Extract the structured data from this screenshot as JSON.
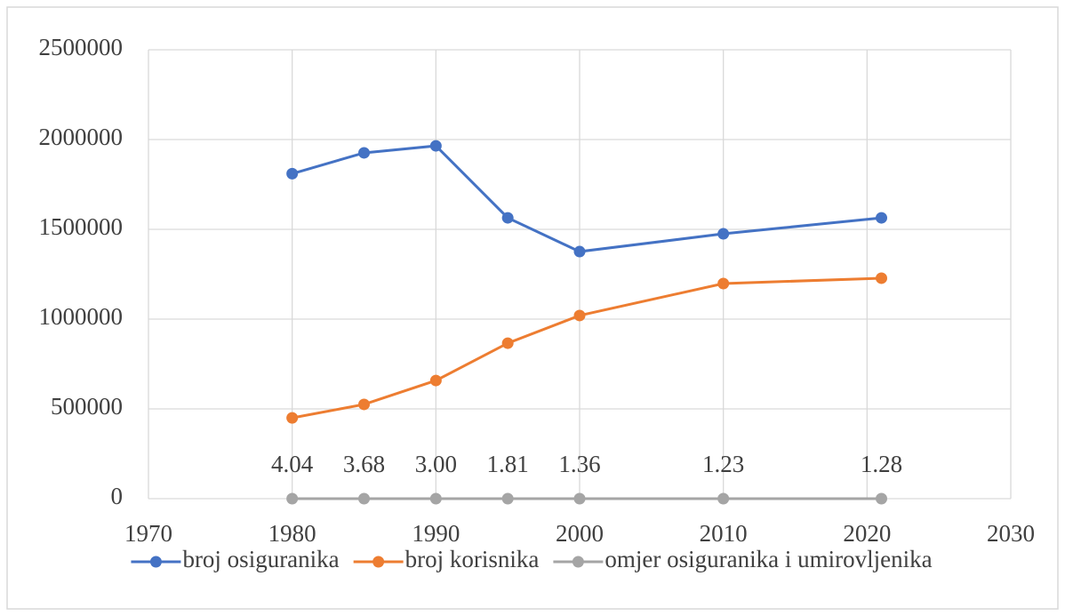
{
  "chart_data": {
    "type": "line",
    "x": [
      1980,
      1985,
      1990,
      1995,
      2000,
      2010,
      2021
    ],
    "series": [
      {
        "name": "broj osiguranika",
        "color": "#4472c4",
        "values": [
          1810000,
          1926000,
          1965000,
          1564000,
          1376000,
          1475000,
          1564000
        ]
      },
      {
        "name": "broj korisnika",
        "color": "#ed7d31",
        "values": [
          450000,
          525000,
          658000,
          866000,
          1020000,
          1198000,
          1228000
        ]
      },
      {
        "name": "omjer osiguranika i umirovljenika",
        "color": "#a5a5a5",
        "values": [
          4.04,
          3.68,
          3.0,
          1.81,
          1.36,
          1.23,
          1.28
        ],
        "value_labels": [
          "4.04",
          "3.68",
          "3.00",
          "1.81",
          "1.36",
          "1.23",
          "1.28"
        ]
      }
    ],
    "xlim": [
      1970,
      2030
    ],
    "xticks": [
      1970,
      1980,
      1990,
      2000,
      2010,
      2020,
      2030
    ],
    "ylim": [
      0,
      2500000
    ],
    "yticks": [
      0,
      500000,
      1000000,
      1500000,
      2000000,
      2500000
    ],
    "grid": true,
    "legend": "bottom"
  }
}
